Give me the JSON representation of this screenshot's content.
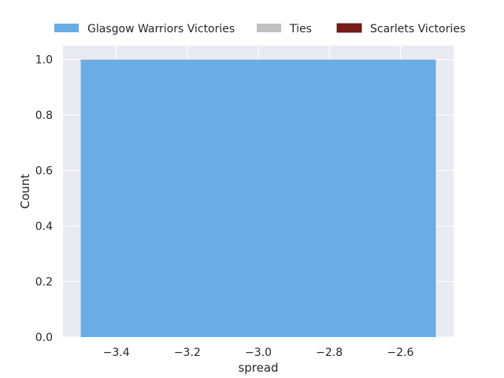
{
  "chart_data": {
    "type": "bar",
    "xlabel": "spread",
    "ylabel": "Count",
    "xlim": [
      -3.55,
      -2.45
    ],
    "ylim": [
      0,
      1.05
    ],
    "xticks": [
      -3.4,
      -3.2,
      -3.0,
      -2.8,
      -2.6
    ],
    "xtick_labels": [
      "−3.4",
      "−3.2",
      "−3.0",
      "−2.8",
      "−2.6"
    ],
    "yticks": [
      0.0,
      0.2,
      0.4,
      0.6,
      0.8,
      1.0
    ],
    "ytick_labels": [
      "0.0",
      "0.2",
      "0.4",
      "0.6",
      "0.8",
      "1.0"
    ],
    "grid": true,
    "legend_position": "top",
    "series": [
      {
        "name": "Glasgow Warriors Victories",
        "color": "#6aace4",
        "bins": [
          {
            "x0": -3.5,
            "x1": -2.5,
            "value": 1
          }
        ]
      },
      {
        "name": "Ties",
        "color": "#c0c0c0",
        "bins": []
      },
      {
        "name": "Scarlets Victories",
        "color": "#7b1a1a",
        "bins": []
      }
    ]
  }
}
